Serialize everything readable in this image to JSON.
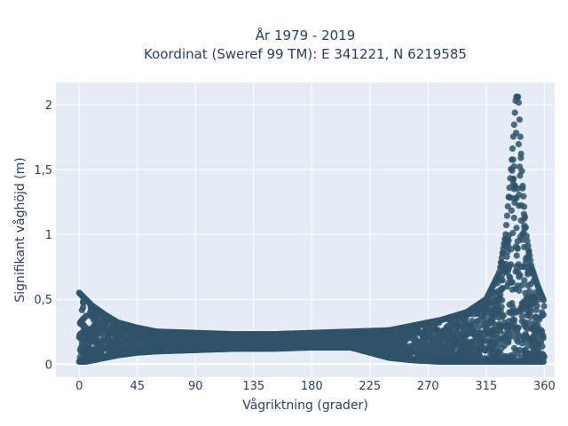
{
  "chart_data": {
    "type": "scatter",
    "title": "År 1979 - 2019",
    "subtitle": "Koordinat (Sweref 99 TM): E 341221, N 6219585",
    "xlabel": "Vågriktning (grader)",
    "ylabel": "Signifikant våghöjd (m)",
    "xlim": [
      -18,
      368
    ],
    "ylim": [
      -0.1,
      2.17
    ],
    "xticks": [
      0,
      45,
      90,
      135,
      180,
      225,
      270,
      315,
      360
    ],
    "xtick_labels": [
      "0",
      "45",
      "90",
      "135",
      "180",
      "225",
      "270",
      "315",
      "360"
    ],
    "yticks": [
      0,
      0.5,
      1,
      1.5,
      2
    ],
    "ytick_labels": [
      "0",
      "0,5",
      "1",
      "1,5",
      "2"
    ],
    "grid": true,
    "plot_background": "#e5ecf6",
    "marker_color": "#2f5468",
    "envelope": {
      "direction_deg": [
        0,
        5,
        10,
        20,
        30,
        45,
        60,
        90,
        120,
        150,
        180,
        210,
        240,
        260,
        280,
        300,
        315,
        325,
        330,
        335,
        338,
        340,
        343,
        346,
        350,
        355,
        360
      ],
      "max_height_m": [
        0.55,
        0.5,
        0.45,
        0.38,
        0.32,
        0.28,
        0.25,
        0.24,
        0.23,
        0.23,
        0.24,
        0.25,
        0.26,
        0.3,
        0.34,
        0.4,
        0.5,
        0.7,
        1.0,
        1.6,
        2.06,
        2.06,
        1.4,
        1.0,
        0.75,
        0.6,
        0.48
      ],
      "min_height_m": [
        0.02,
        0.02,
        0.03,
        0.05,
        0.07,
        0.09,
        0.1,
        0.11,
        0.12,
        0.12,
        0.13,
        0.13,
        0.05,
        0.03,
        0.02,
        0.02,
        0.02,
        0.02,
        0.02,
        0.02,
        0.02,
        0.02,
        0.02,
        0.02,
        0.02,
        0.02,
        0.02
      ]
    }
  }
}
